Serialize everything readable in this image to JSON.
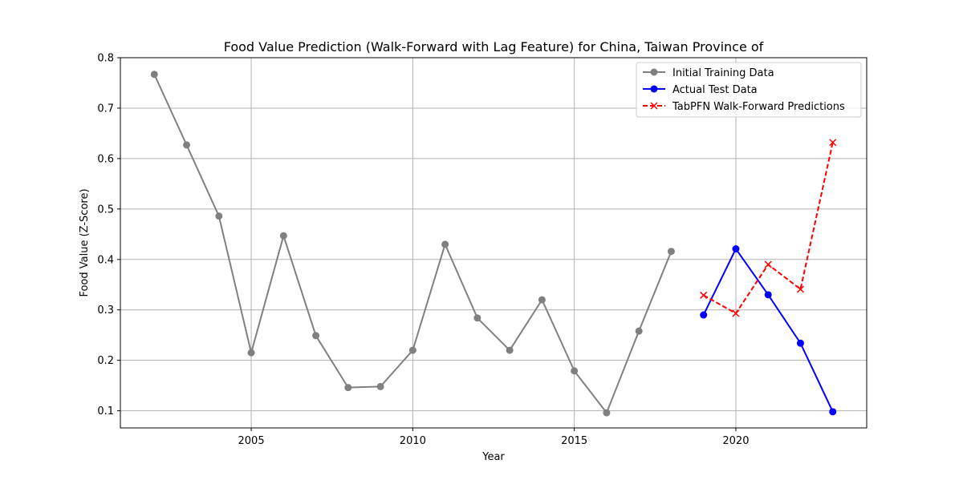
{
  "chart_data": {
    "type": "line",
    "title": "Food Value Prediction (Walk-Forward with Lag Feature) for China, Taiwan Province of",
    "xlabel": "Year",
    "ylabel": "Food Value (Z-Score)",
    "xlim": [
      2000.95,
      2024.05
    ],
    "ylim": [
      0.066,
      0.8
    ],
    "xticks": [
      2005,
      2010,
      2015,
      2020
    ],
    "yticks": [
      0.1,
      0.2,
      0.3,
      0.4,
      0.5,
      0.6,
      0.7,
      0.8
    ],
    "grid": true,
    "legend_position": "top-right",
    "series": [
      {
        "name": "Initial Training Data",
        "color": "#808080",
        "marker": "circle",
        "line_style": "solid",
        "x": [
          2002,
          2003,
          2004,
          2005,
          2006,
          2007,
          2008,
          2009,
          2010,
          2011,
          2012,
          2013,
          2014,
          2015,
          2016,
          2017,
          2018
        ],
        "y": [
          0.767,
          0.627,
          0.486,
          0.215,
          0.447,
          0.249,
          0.146,
          0.148,
          0.22,
          0.43,
          0.284,
          0.22,
          0.32,
          0.179,
          0.096,
          0.258,
          0.416
        ]
      },
      {
        "name": "Actual Test Data",
        "color": "#0000ff",
        "marker": "circle",
        "line_style": "solid",
        "x": [
          2019,
          2020,
          2021,
          2022,
          2023
        ],
        "y": [
          0.29,
          0.421,
          0.33,
          0.234,
          0.098
        ]
      },
      {
        "name": "TabPFN Walk-Forward Predictions",
        "color": "#ff0000",
        "marker": "x",
        "line_style": "dashed",
        "x": [
          2019,
          2020,
          2021,
          2022,
          2023
        ],
        "y": [
          0.329,
          0.293,
          0.39,
          0.341,
          0.632
        ]
      }
    ]
  }
}
